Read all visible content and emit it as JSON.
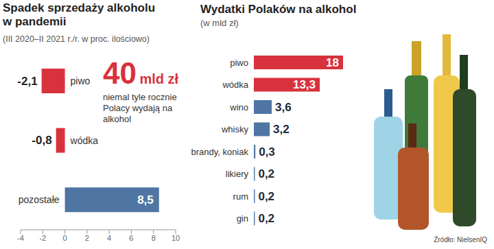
{
  "chart_data": [
    {
      "type": "bar",
      "orientation": "horizontal",
      "title": "Spadek sprzedaży alkoholu w pandemii",
      "subtitle": "(III 2020–II 2021 r./r. w proc. ilościowo)",
      "categories": [
        "piwo",
        "wódka",
        "pozostałe"
      ],
      "values": [
        -2.1,
        -0.8,
        8.5
      ],
      "value_labels": [
        "-2,1",
        "-0,8",
        "8,5"
      ],
      "colors": [
        "#d8323d",
        "#d8323d",
        "#4f76a3"
      ],
      "xlim": [
        -4,
        10
      ],
      "xticks": [
        -4,
        -2,
        0,
        2,
        4,
        6,
        8,
        10
      ],
      "data_labels": true,
      "grid": false,
      "tick_labels": "x",
      "annotations": [
        "40",
        "mld zł",
        "niemal tyle rocznie Polacy wydają na alkohol"
      ]
    },
    {
      "type": "bar",
      "orientation": "horizontal",
      "title": "Wydatki Polaków na alkohol",
      "subtitle": "(w mld zł)",
      "categories": [
        "piwo",
        "wódka",
        "wino",
        "whisky",
        "brandy, koniak",
        "likiery",
        "rum",
        "gin"
      ],
      "values": [
        18,
        13.3,
        3.6,
        3.2,
        0.3,
        0.2,
        0.2,
        0.2
      ],
      "value_labels": [
        "18",
        "13,3",
        "3,6",
        "3,2",
        "0,3",
        "0,2",
        "0,2",
        "0,2"
      ],
      "colors": [
        "#d8323d",
        "#d8323d",
        "#4f76a3",
        "#4f76a3",
        "#4f76a3",
        "#4f76a3",
        "#4f76a3",
        "#4f76a3"
      ],
      "data_labels": true,
      "grid": false,
      "tick_labels": "y",
      "source": "Źródło: NielsenIQ"
    }
  ]
}
